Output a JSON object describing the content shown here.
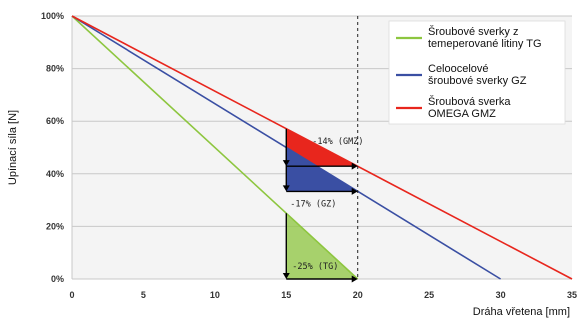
{
  "chart_data": {
    "type": "line",
    "xlabel": "Dráha vřetena [mm]",
    "ylabel": "Upínací síla [N]",
    "xlim": [
      0,
      35
    ],
    "ylim": [
      0,
      100
    ],
    "x_ticks": [
      "0",
      "5",
      "10",
      "15",
      "20",
      "25",
      "30",
      "35"
    ],
    "y_ticks": [
      "0%",
      "20%",
      "40%",
      "60%",
      "80%",
      "100%"
    ],
    "grid": "horizontal",
    "legend_position": "top-right",
    "series": [
      {
        "name": "Šroubové sverky z temeperované litiny TG",
        "name_lines": [
          "Šroubové sverky z",
          "temeperované litiny TG"
        ],
        "color": "#8dc63f",
        "x": [
          0,
          20
        ],
        "y": [
          100,
          0
        ]
      },
      {
        "name": "Celoocelové šroubové sverky GZ",
        "name_lines": [
          "Celoocelové",
          "šroubové sverky GZ"
        ],
        "color": "#3a4fa3",
        "x": [
          0,
          30
        ],
        "y": [
          100,
          0
        ]
      },
      {
        "name": "Šroubová sverka OMEGA GMZ",
        "name_lines": [
          "Šroubová sverka",
          "OMEGA GMZ"
        ],
        "color": "#e8261d",
        "x": [
          0,
          35
        ],
        "y": [
          100,
          0
        ]
      }
    ],
    "reference_line_x": 20,
    "annotations": [
      {
        "label": "-14% (GMZ)",
        "x_from": 15,
        "x_to": 20,
        "y_top": 57.1,
        "y_bottom": 42.9,
        "color": "#e8261d"
      },
      {
        "label": "-17% (GZ)",
        "x_from": 15,
        "x_to": 20,
        "y_top": 50,
        "y_bottom": 33.3,
        "color": "#3a4fa3"
      },
      {
        "label": "-25% (TG)",
        "x_from": 15,
        "x_to": 20,
        "y_top": 25,
        "y_bottom": 0,
        "color": "#8dc63f"
      }
    ]
  }
}
